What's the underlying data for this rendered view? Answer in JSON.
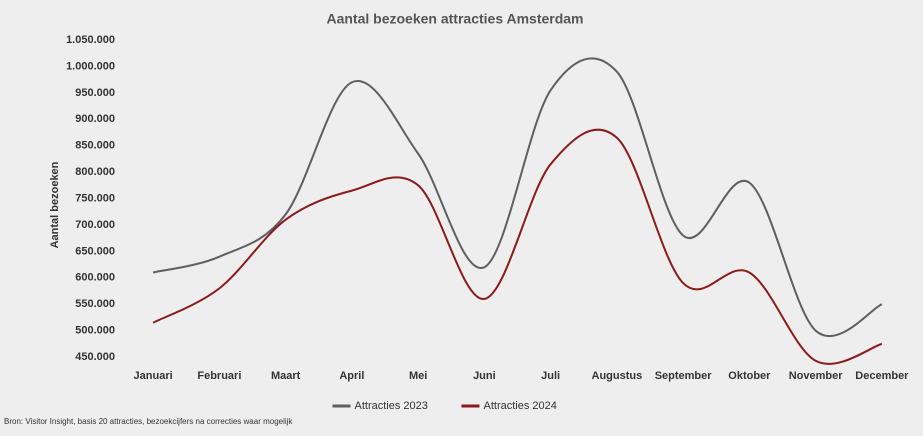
{
  "chart_data": {
    "type": "line",
    "title": "Aantal bezoeken attracties Amsterdam",
    "y_label": "Aantal bezoeken",
    "source": "Bron: Visitor Insight, basis 20 attracties, bezoekcijfers na correcties waar mogelijk",
    "categories": [
      "Januari",
      "Februari",
      "Maart",
      "April",
      "Mei",
      "Juni",
      "Juli",
      "Augustus",
      "September",
      "Oktober",
      "November",
      "December"
    ],
    "series": [
      {
        "name": "Attracties 2023",
        "color": "#5f5f5f",
        "values": [
          610000,
          640000,
          720000,
          970000,
          835000,
          620000,
          955000,
          990000,
          680000,
          780000,
          500000,
          550000
        ]
      },
      {
        "name": "Attracties 2024",
        "color": "#8b1a1a",
        "values": [
          515000,
          580000,
          710000,
          765000,
          775000,
          560000,
          815000,
          865000,
          590000,
          610000,
          443000,
          475000
        ]
      }
    ],
    "ylim": [
      435000,
      1050000
    ],
    "yticks": [
      {
        "value": 450000,
        "label": "450.000"
      },
      {
        "value": 500000,
        "label": "500.000"
      },
      {
        "value": 550000,
        "label": "550.000"
      },
      {
        "value": 600000,
        "label": "600.000"
      },
      {
        "value": 650000,
        "label": "650.000"
      },
      {
        "value": 700000,
        "label": "700.000"
      },
      {
        "value": 750000,
        "label": "750.000"
      },
      {
        "value": 800000,
        "label": "800.000"
      },
      {
        "value": 850000,
        "label": "850.000"
      },
      {
        "value": 900000,
        "label": "900.000"
      },
      {
        "value": 950000,
        "label": "950.000"
      },
      {
        "value": 1000000,
        "label": "1.000.000"
      },
      {
        "value": 1050000,
        "label": "1.050.000"
      }
    ],
    "legend": "bottom"
  }
}
